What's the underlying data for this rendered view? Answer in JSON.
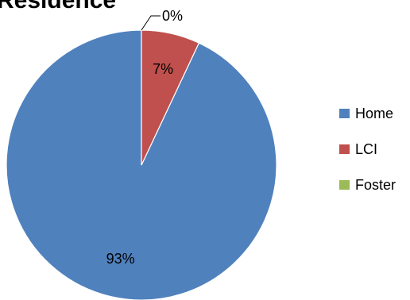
{
  "chart_data": {
    "type": "pie",
    "title": "Residence",
    "categories": [
      "Home",
      "LCI",
      "Foster"
    ],
    "values": [
      93,
      7,
      0
    ],
    "value_labels": [
      "93%",
      "7%",
      "0%"
    ],
    "colors": [
      "#4f81bd",
      "#c0504d",
      "#9bbb59"
    ],
    "legend_position": "right",
    "start_angle": "12 o'clock",
    "direction": "counterclockwise"
  }
}
